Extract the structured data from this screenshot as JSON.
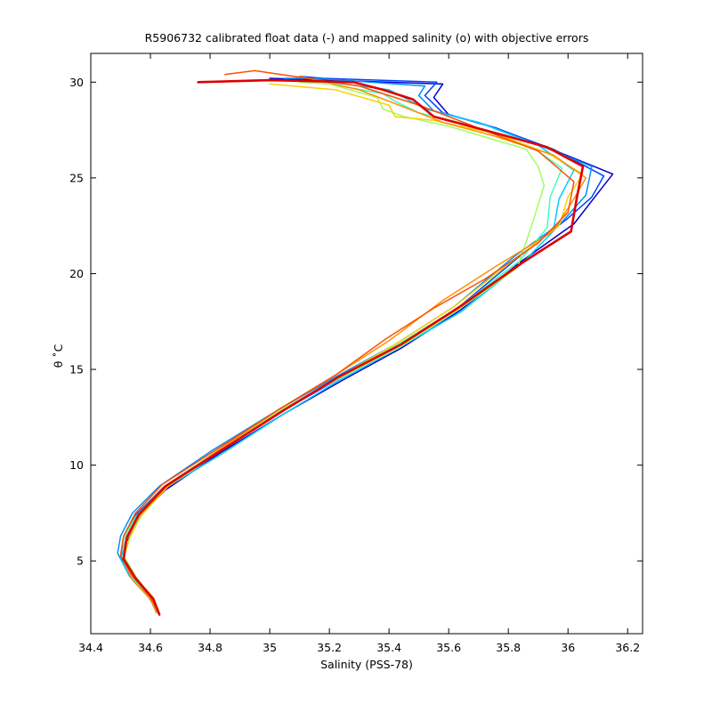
{
  "chart_data": {
    "type": "line",
    "title": "R5906732 calibrated float data (-) and mapped salinity (o) with objective errors",
    "xlabel": "Salinity (PSS-78)",
    "ylabel": "θ ˚C",
    "xlim": [
      34.4,
      36.25
    ],
    "ylim": [
      1.2,
      31.5
    ],
    "x_ticks": [
      34.4,
      34.6,
      34.8,
      35,
      35.2,
      35.4,
      35.6,
      35.8,
      36,
      36.2
    ],
    "x_tick_labels": [
      "34.4",
      "34.6",
      "34.8",
      "35",
      "35.2",
      "35.4",
      "35.6",
      "35.8",
      "36",
      "36.2"
    ],
    "y_ticks": [
      5,
      10,
      15,
      20,
      25,
      30
    ],
    "y_tick_labels": [
      "5",
      "10",
      "15",
      "20",
      "25",
      "30"
    ],
    "grid": false,
    "legend": "none",
    "colormap": "jet",
    "series": [
      {
        "color": "#0000cc",
        "points": [
          [
            34.63,
            2.2
          ],
          [
            34.61,
            3.0
          ],
          [
            34.55,
            4.0
          ],
          [
            34.51,
            5.0
          ],
          [
            34.52,
            6.0
          ],
          [
            34.56,
            7.3
          ],
          [
            34.65,
            8.7
          ],
          [
            34.83,
            10.6
          ],
          [
            35.05,
            12.7
          ],
          [
            35.24,
            14.4
          ],
          [
            35.44,
            16.1
          ],
          [
            35.64,
            18.1
          ],
          [
            35.84,
            20.6
          ],
          [
            36.02,
            22.6
          ],
          [
            36.1,
            24.2
          ],
          [
            36.15,
            25.2
          ],
          [
            35.96,
            26.4
          ],
          [
            35.76,
            27.6
          ],
          [
            35.6,
            28.3
          ],
          [
            35.55,
            29.2
          ],
          [
            35.58,
            29.9
          ],
          [
            35.2,
            30.1
          ],
          [
            35.0,
            30.2
          ]
        ]
      },
      {
        "color": "#0044ff",
        "points": [
          [
            34.62,
            2.3
          ],
          [
            34.6,
            3.1
          ],
          [
            34.54,
            4.1
          ],
          [
            34.5,
            5.2
          ],
          [
            34.51,
            6.2
          ],
          [
            34.55,
            7.4
          ],
          [
            34.64,
            8.8
          ],
          [
            34.82,
            10.7
          ],
          [
            35.04,
            12.8
          ],
          [
            35.23,
            14.5
          ],
          [
            35.43,
            16.2
          ],
          [
            35.63,
            18.2
          ],
          [
            35.83,
            20.8
          ],
          [
            36.0,
            22.9
          ],
          [
            36.08,
            24.0
          ],
          [
            36.12,
            25.1
          ],
          [
            35.95,
            26.5
          ],
          [
            35.74,
            27.7
          ],
          [
            35.58,
            28.4
          ],
          [
            35.52,
            29.3
          ],
          [
            35.56,
            30.0
          ],
          [
            35.18,
            30.2
          ],
          [
            35.1,
            30.3
          ]
        ]
      },
      {
        "color": "#0090ff",
        "points": [
          [
            34.63,
            2.2
          ],
          [
            34.59,
            3.2
          ],
          [
            34.53,
            4.2
          ],
          [
            34.49,
            5.4
          ],
          [
            34.5,
            6.3
          ],
          [
            34.54,
            7.5
          ],
          [
            34.63,
            8.9
          ],
          [
            34.81,
            10.8
          ],
          [
            35.03,
            12.9
          ],
          [
            35.22,
            14.6
          ],
          [
            35.42,
            16.3
          ],
          [
            35.62,
            18.3
          ],
          [
            35.82,
            20.9
          ],
          [
            35.98,
            22.7
          ],
          [
            36.06,
            24.1
          ],
          [
            36.08,
            25.6
          ],
          [
            35.92,
            26.6
          ],
          [
            35.72,
            27.8
          ],
          [
            35.55,
            28.5
          ],
          [
            35.5,
            29.3
          ],
          [
            35.52,
            29.8
          ],
          [
            35.15,
            30.2
          ],
          [
            35.05,
            30.2
          ]
        ]
      },
      {
        "color": "#00ccff",
        "points": [
          [
            34.62,
            2.3
          ],
          [
            34.6,
            3.0
          ],
          [
            34.54,
            4.0
          ],
          [
            34.5,
            5.1
          ],
          [
            34.52,
            6.1
          ],
          [
            34.56,
            7.2
          ],
          [
            34.65,
            8.8
          ],
          [
            34.84,
            10.6
          ],
          [
            35.05,
            12.7
          ],
          [
            35.23,
            14.4
          ],
          [
            35.43,
            16.1
          ],
          [
            35.64,
            18.0
          ],
          [
            35.85,
            20.6
          ],
          [
            35.95,
            22.2
          ],
          [
            35.97,
            23.9
          ],
          [
            36.02,
            25.4
          ],
          [
            35.9,
            26.7
          ],
          [
            35.7,
            27.9
          ],
          [
            35.52,
            28.6
          ],
          [
            35.45,
            29.2
          ],
          [
            35.4,
            29.6
          ],
          [
            35.2,
            30.0
          ],
          [
            35.08,
            30.1
          ]
        ]
      },
      {
        "color": "#40ffc0",
        "points": [
          [
            34.63,
            2.2
          ],
          [
            34.6,
            3.1
          ],
          [
            34.54,
            4.1
          ],
          [
            34.51,
            5.2
          ],
          [
            34.51,
            6.2
          ],
          [
            34.55,
            7.3
          ],
          [
            34.64,
            8.8
          ],
          [
            34.82,
            10.7
          ],
          [
            35.04,
            12.8
          ],
          [
            35.22,
            14.5
          ],
          [
            35.42,
            16.2
          ],
          [
            35.63,
            18.2
          ],
          [
            35.84,
            20.7
          ],
          [
            35.93,
            22.4
          ],
          [
            35.94,
            24.0
          ],
          [
            35.98,
            25.5
          ],
          [
            35.88,
            26.6
          ],
          [
            35.66,
            27.8
          ],
          [
            35.5,
            28.4
          ],
          [
            35.42,
            29.0
          ],
          [
            35.38,
            29.4
          ],
          [
            35.2,
            29.9
          ],
          [
            35.1,
            30.0
          ]
        ]
      },
      {
        "color": "#a0ff60",
        "points": [
          [
            34.62,
            2.3
          ],
          [
            34.6,
            3.2
          ],
          [
            34.55,
            4.2
          ],
          [
            34.51,
            5.3
          ],
          [
            34.52,
            6.3
          ],
          [
            34.56,
            7.4
          ],
          [
            34.65,
            8.9
          ],
          [
            34.83,
            10.8
          ],
          [
            35.04,
            12.9
          ],
          [
            35.24,
            14.6
          ],
          [
            35.44,
            16.2
          ],
          [
            35.64,
            18.2
          ],
          [
            35.83,
            20.3
          ],
          [
            35.88,
            22.6
          ],
          [
            35.92,
            24.6
          ],
          [
            35.9,
            25.6
          ],
          [
            35.86,
            26.5
          ],
          [
            35.6,
            27.7
          ],
          [
            35.45,
            28.2
          ],
          [
            35.38,
            28.6
          ],
          [
            35.36,
            29.2
          ],
          [
            35.2,
            29.9
          ],
          [
            35.1,
            30.0
          ]
        ]
      },
      {
        "color": "#ffd000",
        "points": [
          [
            34.63,
            2.2
          ],
          [
            34.61,
            3.1
          ],
          [
            34.55,
            4.1
          ],
          [
            34.51,
            5.1
          ],
          [
            34.53,
            6.2
          ],
          [
            34.57,
            7.4
          ],
          [
            34.66,
            8.9
          ],
          [
            34.83,
            10.7
          ],
          [
            35.04,
            12.8
          ],
          [
            35.23,
            14.6
          ],
          [
            35.42,
            16.3
          ],
          [
            35.62,
            18.3
          ],
          [
            35.8,
            20.5
          ],
          [
            35.97,
            22.5
          ],
          [
            36.0,
            24.0
          ],
          [
            36.05,
            25.2
          ],
          [
            35.93,
            26.3
          ],
          [
            35.76,
            27.3
          ],
          [
            35.55,
            28.0
          ],
          [
            35.42,
            28.2
          ],
          [
            35.4,
            28.8
          ],
          [
            35.22,
            29.6
          ],
          [
            35.0,
            29.9
          ]
        ]
      },
      {
        "color": "#ff9000",
        "points": [
          [
            34.62,
            2.3
          ],
          [
            34.6,
            3.0
          ],
          [
            34.54,
            4.0
          ],
          [
            34.51,
            5.0
          ],
          [
            34.52,
            6.1
          ],
          [
            34.56,
            7.3
          ],
          [
            34.65,
            8.8
          ],
          [
            34.82,
            10.7
          ],
          [
            35.03,
            12.9
          ],
          [
            35.22,
            14.7
          ],
          [
            35.4,
            16.5
          ],
          [
            35.58,
            18.6
          ],
          [
            35.76,
            20.4
          ],
          [
            35.95,
            22.2
          ],
          [
            36.02,
            23.9
          ],
          [
            36.06,
            25.0
          ],
          [
            35.95,
            26.2
          ],
          [
            35.75,
            27.2
          ],
          [
            35.58,
            27.9
          ],
          [
            35.45,
            28.7
          ],
          [
            35.3,
            29.6
          ],
          [
            35.1,
            30.3
          ]
        ]
      },
      {
        "color": "#ff5000",
        "points": [
          [
            34.63,
            2.2
          ],
          [
            34.6,
            3.1
          ],
          [
            34.54,
            4.2
          ],
          [
            34.5,
            5.3
          ],
          [
            34.51,
            6.3
          ],
          [
            34.55,
            7.5
          ],
          [
            34.64,
            9.0
          ],
          [
            34.82,
            10.8
          ],
          [
            35.03,
            12.9
          ],
          [
            35.22,
            14.7
          ],
          [
            35.39,
            16.6
          ],
          [
            35.55,
            18.2
          ],
          [
            35.72,
            19.7
          ],
          [
            35.9,
            21.6
          ],
          [
            36.0,
            23.2
          ],
          [
            36.02,
            24.8
          ],
          [
            35.9,
            26.4
          ],
          [
            35.7,
            27.6
          ],
          [
            35.5,
            28.8
          ],
          [
            35.3,
            29.8
          ],
          [
            34.95,
            30.6
          ],
          [
            34.85,
            30.4
          ]
        ]
      },
      {
        "color": "#dd0000",
        "points": [
          [
            34.63,
            2.2
          ],
          [
            34.61,
            3.0
          ],
          [
            34.55,
            4.1
          ],
          [
            34.51,
            5.1
          ],
          [
            34.52,
            6.2
          ],
          [
            34.56,
            7.4
          ],
          [
            34.65,
            8.9
          ],
          [
            34.83,
            10.7
          ],
          [
            35.04,
            12.8
          ],
          [
            35.23,
            14.6
          ],
          [
            35.44,
            16.3
          ],
          [
            35.64,
            18.3
          ],
          [
            35.85,
            20.6
          ],
          [
            36.01,
            22.2
          ],
          [
            36.03,
            24.0
          ],
          [
            36.05,
            25.6
          ],
          [
            35.93,
            26.6
          ],
          [
            35.72,
            27.5
          ],
          [
            35.55,
            28.2
          ],
          [
            35.48,
            29.1
          ],
          [
            35.38,
            29.6
          ],
          [
            35.28,
            30.0
          ],
          [
            35.0,
            30.1
          ],
          [
            34.76,
            30.0
          ]
        ]
      }
    ]
  }
}
